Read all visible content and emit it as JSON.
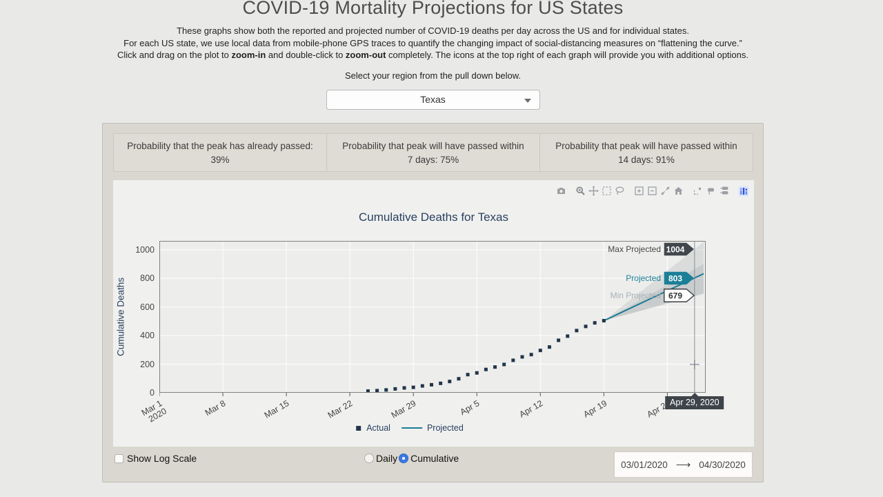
{
  "page": {
    "title": "COVID-19 Mortality Projections for US States",
    "intro": [
      {
        "parts": [
          {
            "text": "These graphs show both the reported and projected number of COVID-19 deaths per day across the US and for individual states.",
            "bold": false
          }
        ]
      },
      {
        "parts": [
          {
            "text": "For each US state, we use local data from mobile-phone GPS traces to quantify the changing impact of social-distancing measures on “flattening the curve.”",
            "bold": false
          }
        ]
      },
      {
        "parts": [
          {
            "text": "Click and drag on the plot to ",
            "bold": false
          },
          {
            "text": "zoom-in",
            "bold": true
          },
          {
            "text": " and double-click to ",
            "bold": false
          },
          {
            "text": "zoom-out",
            "bold": true
          },
          {
            "text": " completely. The icons at the top right of each graph will provide you with additional options.",
            "bold": false
          }
        ]
      }
    ],
    "select_prompt": "Select your region from the pull down below.",
    "region_dropdown": {
      "value": "Texas"
    }
  },
  "stats": [
    {
      "line1": "Probability that the peak has already passed:",
      "line2": "39%"
    },
    {
      "line1": "Probability that peak will have passed within",
      "line2": "7 days: 75%"
    },
    {
      "line1": "Probability that peak will have passed within",
      "line2": "14 days: 91%"
    }
  ],
  "modebar_icons": [
    "camera-download",
    "zoom",
    "pan",
    "box-select",
    "lasso-select",
    "zoom-in",
    "zoom-out",
    "autoscale",
    "reset-axes-home",
    "toggle-spike-lines",
    "show-closest-on-hover",
    "compare-data-on-hover",
    "plotly-logo"
  ],
  "chart": {
    "title": "Cumulative Deaths for Texas",
    "ylabel": "Cumulative Deaths",
    "legend": [
      "Actual",
      "Projected"
    ],
    "annotations": [
      {
        "label": "Max Projected",
        "value": "1004",
        "style": "dark"
      },
      {
        "label": "Projected",
        "value": "803",
        "style": "teal"
      },
      {
        "label": "Min Projected",
        "value": "679",
        "style": "light"
      }
    ],
    "hover_label": "Apr 29, 2020"
  },
  "chart_data": {
    "type": "line",
    "title": "Cumulative Deaths for Texas",
    "xlabel": "",
    "ylabel": "Cumulative Deaths",
    "x_range": [
      "2020-03-01",
      "2020-04-30"
    ],
    "ylim": [
      0,
      1062
    ],
    "y_ticks": [
      0,
      200,
      400,
      600,
      800,
      1000
    ],
    "x_ticks": [
      {
        "date": "2020-03-01",
        "label": "Mar 1",
        "sublabel": "2020"
      },
      {
        "date": "2020-03-08",
        "label": "Mar 8"
      },
      {
        "date": "2020-03-15",
        "label": "Mar 15"
      },
      {
        "date": "2020-03-22",
        "label": "Mar 22"
      },
      {
        "date": "2020-03-29",
        "label": "Mar 29"
      },
      {
        "date": "2020-04-05",
        "label": "Apr 5"
      },
      {
        "date": "2020-04-12",
        "label": "Apr 12"
      },
      {
        "date": "2020-04-19",
        "label": "Apr 19"
      },
      {
        "date": "2020-04-26",
        "label": "Apr 26"
      }
    ],
    "series": [
      {
        "name": "Actual",
        "type": "scatter-square",
        "color": "#223549",
        "dates": [
          "2020-03-24",
          "2020-03-25",
          "2020-03-26",
          "2020-03-27",
          "2020-03-28",
          "2020-03-29",
          "2020-03-30",
          "2020-03-31",
          "2020-04-01",
          "2020-04-02",
          "2020-04-03",
          "2020-04-04",
          "2020-04-05",
          "2020-04-06",
          "2020-04-07",
          "2020-04-08",
          "2020-04-09",
          "2020-04-10",
          "2020-04-11",
          "2020-04-12",
          "2020-04-13",
          "2020-04-14",
          "2020-04-15",
          "2020-04-16",
          "2020-04-17",
          "2020-04-18",
          "2020-04-19"
        ],
        "values": [
          12,
          15,
          20,
          27,
          34,
          38,
          48,
          56,
          66,
          79,
          98,
          127,
          139,
          163,
          180,
          198,
          227,
          251,
          267,
          296,
          320,
          367,
          396,
          435,
          464,
          489,
          504
        ]
      },
      {
        "name": "Projected",
        "type": "line",
        "color": "#1a7b93",
        "dates": [
          "2020-04-19",
          "2020-04-29",
          "2020-04-30"
        ],
        "values": [
          504,
          803,
          833
        ]
      }
    ],
    "projection_band": {
      "dates": [
        "2020-04-19",
        "2020-04-30"
      ],
      "upper": [
        504,
        1054
      ],
      "lower": [
        504,
        697
      ],
      "inner_upper": [
        504,
        900
      ],
      "inner_lower": [
        504,
        690
      ]
    },
    "projection_endpoints": {
      "date": "2020-04-29",
      "projected": 803,
      "max": 1004,
      "min": 679
    },
    "hover": {
      "date": "2020-04-29",
      "label": "Apr 29, 2020",
      "cursor_value": 198
    },
    "grid": true,
    "legend_position": "bottom-center"
  },
  "controls": {
    "log_label": "Show Log Scale",
    "log_checked": false,
    "daily_label": "Daily",
    "cumulative_label": "Cumulative",
    "selected_mode": "Cumulative",
    "date_start": "03/01/2020",
    "date_end": "04/30/2020"
  }
}
